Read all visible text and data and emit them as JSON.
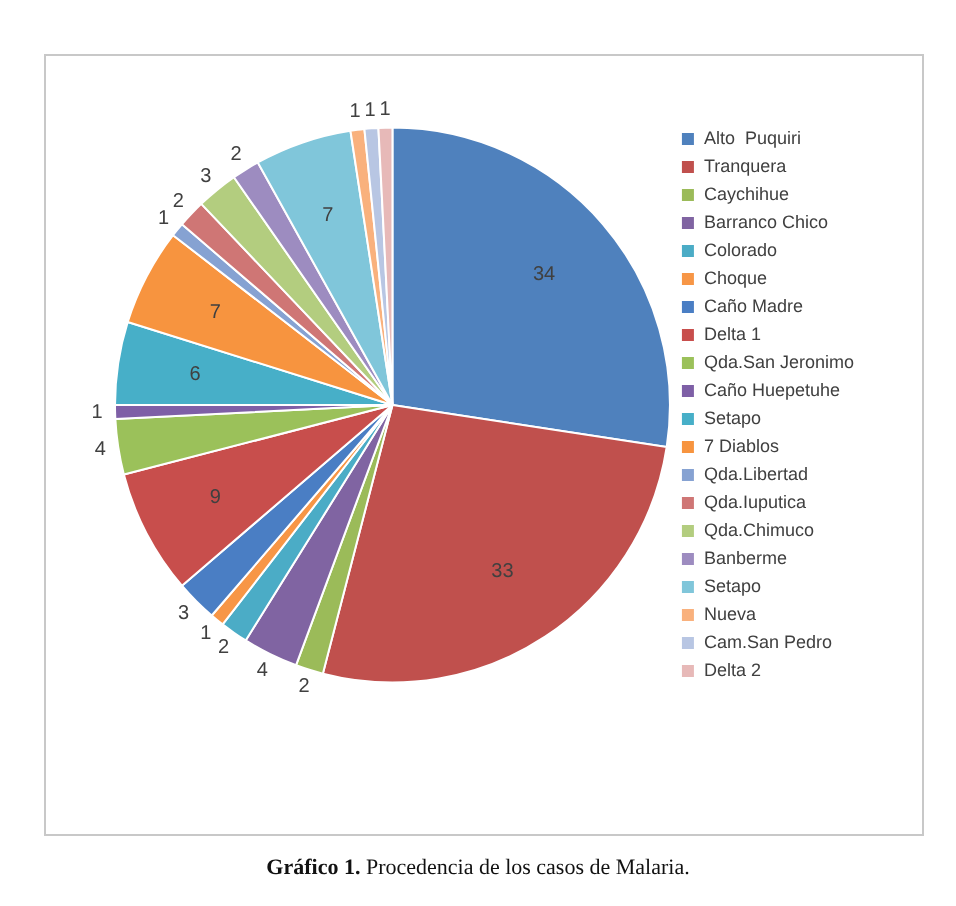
{
  "chart_data": {
    "type": "pie",
    "categories": [
      "Alto  Puquiri",
      "Tranquera",
      "Caychihue",
      "Barranco Chico",
      "Colorado",
      "Choque",
      "Caño Madre",
      "Delta 1",
      "Qda.San Jeronimo",
      "Caño Huepetuhe",
      "Setapo",
      "7 Diablos",
      "Qda.Libertad",
      "Qda.Iuputica",
      "Qda.Chimuco",
      "Banberme",
      "Setapo",
      "Nueva",
      "Cam.San Pedro",
      "Delta 2"
    ],
    "values": [
      34,
      33,
      2,
      4,
      2,
      1,
      3,
      9,
      4,
      1,
      6,
      7,
      1,
      2,
      3,
      2,
      7,
      1,
      1,
      1
    ],
    "colors": [
      "#4f81bd",
      "#c0504d",
      "#9bbb59",
      "#8064a2",
      "#4bacc6",
      "#f79646",
      "#4a7ec4",
      "#c84e4c",
      "#9bc15a",
      "#7e5fa6",
      "#47afc8",
      "#f7943f",
      "#86a2d2",
      "#cf7675",
      "#b3cd7f",
      "#9d8cc0",
      "#80c6da",
      "#f9b17d",
      "#b8c6e3",
      "#e7b9b8"
    ],
    "data_labels": true,
    "legend": "right",
    "annotations": [
      "Gráfico 1. Procedencia de los casos de Malaria."
    ]
  }
}
